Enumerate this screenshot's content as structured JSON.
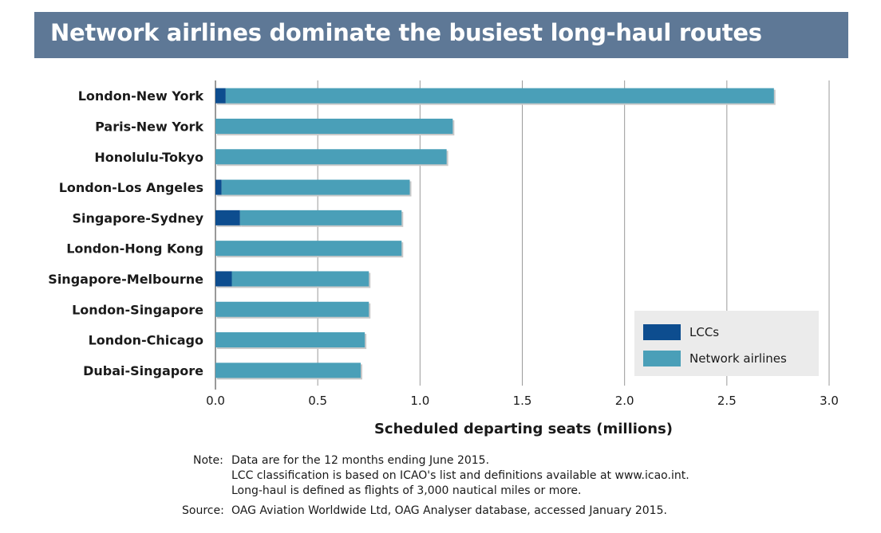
{
  "header": {
    "title": "Network airlines dominate the busiest long-haul routes"
  },
  "colors": {
    "lcc": "#0d4d8f",
    "network": "#4a9fb8",
    "header_bg": "#5e7896",
    "legend_bg": "#ebebeb"
  },
  "chart_data": {
    "type": "bar",
    "orientation": "horizontal",
    "stacked": true,
    "categories": [
      "London-New York",
      "Paris-New York",
      "Honolulu-Tokyo",
      "London-Los Angeles",
      "Singapore-Sydney",
      "London-Hong Kong",
      "Singapore-Melbourne",
      "London-Singapore",
      "London-Chicago",
      "Dubai-Singapore"
    ],
    "series": [
      {
        "name": "LCCs",
        "values": [
          0.05,
          0,
          0,
          0.03,
          0.12,
          0,
          0.08,
          0,
          0,
          0
        ]
      },
      {
        "name": "Network airlines",
        "values": [
          2.68,
          1.16,
          1.13,
          0.92,
          0.79,
          0.91,
          0.67,
          0.75,
          0.73,
          0.71
        ]
      }
    ],
    "xlabel": "Scheduled departing seats (millions)",
    "xlim": [
      0,
      3.0
    ],
    "xticks": [
      "0.0",
      "0.5",
      "1.0",
      "1.5",
      "2.0",
      "2.5",
      "3.0"
    ],
    "grid": "vertical",
    "legend_position": "bottom-right"
  },
  "notes": {
    "note_label": "Note:",
    "lines": [
      "Data are for the 12 months ending June 2015.",
      "LCC classification is based on ICAO's list and definitions available at www.icao.int.",
      "Long-haul is defined as flights of 3,000 nautical miles or more."
    ],
    "source_label": "Source:",
    "source_text": "OAG Aviation Worldwide Ltd, OAG Analyser database, accessed January 2015."
  }
}
